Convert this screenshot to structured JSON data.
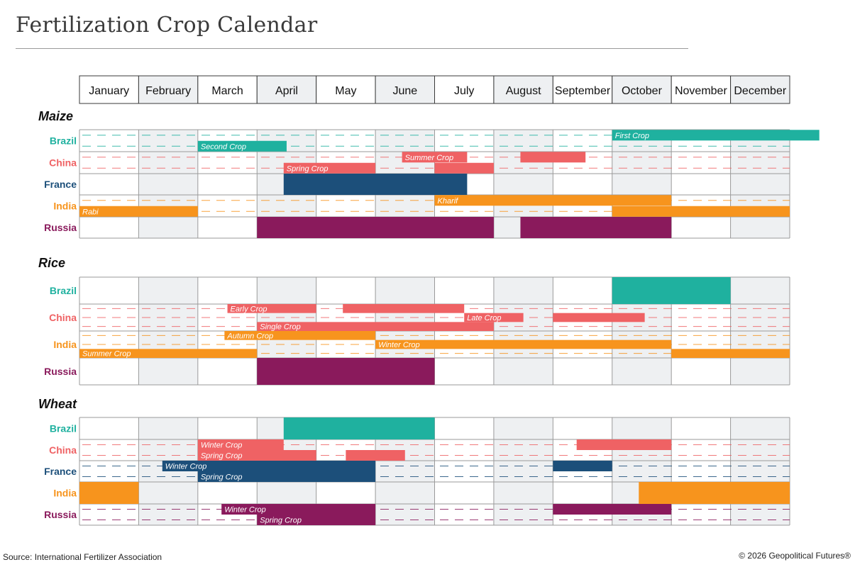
{
  "title": "Fertilization Crop Calendar",
  "source": "Source: International Fertilizer Association",
  "copyright": "© 2026 Geopolitical Futures®",
  "colors": {
    "Brazil": "#1fb19f",
    "China": "#ef6264",
    "France": "#1c4f7a",
    "India": "#f7941d",
    "Russia": "#8a1a5c",
    "shade": "#eef0f2",
    "grid": "#9a9a9a"
  },
  "chart_data": {
    "type": "gantt",
    "months": [
      "January",
      "February",
      "March",
      "April",
      "May",
      "June",
      "July",
      "August",
      "September",
      "October",
      "November",
      "December"
    ],
    "crops": [
      {
        "name": "Maize",
        "rows": [
          {
            "country": "Brazil",
            "lanes": 2,
            "bars": [
              {
                "lane": 1,
                "start": 2.0,
                "end": 3.5,
                "label": "Second Crop"
              },
              {
                "lane": 0,
                "start": 9.0,
                "end": 12.5,
                "label": "First Crop"
              }
            ]
          },
          {
            "country": "China",
            "lanes": 2,
            "bars": [
              {
                "lane": 0,
                "start": 5.45,
                "end": 6.55,
                "label": "Summer Crop"
              },
              {
                "lane": 0,
                "start": 7.45,
                "end": 8.55,
                "label": ""
              },
              {
                "lane": 1,
                "start": 3.45,
                "end": 5.0,
                "label": "Spring Crop"
              },
              {
                "lane": 1,
                "start": 6.0,
                "end": 7.0,
                "label": ""
              }
            ]
          },
          {
            "country": "France",
            "lanes": 1,
            "bars": [
              {
                "lane": 0,
                "start": 3.45,
                "end": 6.55,
                "label": ""
              }
            ]
          },
          {
            "country": "India",
            "lanes": 2,
            "bars": [
              {
                "lane": 0,
                "start": 6.0,
                "end": 10.0,
                "label": "Kharif"
              },
              {
                "lane": 1,
                "start": 0.0,
                "end": 2.0,
                "label": "Rabi"
              },
              {
                "lane": 1,
                "start": 9.0,
                "end": 12.0,
                "label": ""
              }
            ]
          },
          {
            "country": "Russia",
            "lanes": 1,
            "bars": [
              {
                "lane": 0,
                "start": 3.0,
                "end": 7.0,
                "label": ""
              },
              {
                "lane": 0,
                "start": 7.45,
                "end": 10.0,
                "label": ""
              }
            ]
          }
        ]
      },
      {
        "name": "Rice",
        "rows": [
          {
            "country": "Brazil",
            "lanes": 1,
            "bars": [
              {
                "lane": 0,
                "start": 9.0,
                "end": 11.0,
                "label": ""
              }
            ]
          },
          {
            "country": "China",
            "lanes": 3,
            "bars": [
              {
                "lane": 0,
                "start": 2.5,
                "end": 4.0,
                "label": "Early Crop"
              },
              {
                "lane": 0,
                "start": 4.45,
                "end": 6.5,
                "label": ""
              },
              {
                "lane": 1,
                "start": 6.5,
                "end": 7.5,
                "label": "Late Crop"
              },
              {
                "lane": 1,
                "start": 8.0,
                "end": 9.55,
                "label": ""
              },
              {
                "lane": 2,
                "start": 3.0,
                "end": 7.0,
                "label": "Single Crop"
              }
            ]
          },
          {
            "country": "India",
            "lanes": 3,
            "bars": [
              {
                "lane": 0,
                "start": 2.45,
                "end": 5.0,
                "label": "Autumn Crop"
              },
              {
                "lane": 1,
                "start": 5.0,
                "end": 10.0,
                "label": "Winter Crop"
              },
              {
                "lane": 2,
                "start": 0.0,
                "end": 3.0,
                "label": "Summer Crop"
              },
              {
                "lane": 2,
                "start": 10.0,
                "end": 12.0,
                "label": ""
              }
            ]
          },
          {
            "country": "Russia",
            "lanes": 1,
            "bars": [
              {
                "lane": 0,
                "start": 3.0,
                "end": 6.0,
                "label": ""
              }
            ]
          }
        ]
      },
      {
        "name": "Wheat",
        "rows": [
          {
            "country": "Brazil",
            "lanes": 1,
            "bars": [
              {
                "lane": 0,
                "start": 3.45,
                "end": 6.0,
                "label": ""
              }
            ]
          },
          {
            "country": "China",
            "lanes": 2,
            "bars": [
              {
                "lane": 0,
                "start": 2.0,
                "end": 3.45,
                "label": "Winter Crop"
              },
              {
                "lane": 0,
                "start": 8.4,
                "end": 10.0,
                "label": ""
              },
              {
                "lane": 1,
                "start": 2.0,
                "end": 4.0,
                "label": "Spring Crop"
              },
              {
                "lane": 1,
                "start": 4.5,
                "end": 5.5,
                "label": ""
              }
            ]
          },
          {
            "country": "France",
            "lanes": 2,
            "bars": [
              {
                "lane": 0,
                "start": 1.4,
                "end": 5.0,
                "label": "Winter Crop"
              },
              {
                "lane": 0,
                "start": 8.0,
                "end": 9.0,
                "label": ""
              },
              {
                "lane": 1,
                "start": 2.0,
                "end": 5.0,
                "label": "Spring Crop"
              }
            ]
          },
          {
            "country": "India",
            "lanes": 1,
            "bars": [
              {
                "lane": 0,
                "start": 0.0,
                "end": 1.0,
                "label": ""
              },
              {
                "lane": 0,
                "start": 9.45,
                "end": 12.0,
                "label": ""
              }
            ]
          },
          {
            "country": "Russia",
            "lanes": 2,
            "bars": [
              {
                "lane": 0,
                "start": 2.4,
                "end": 5.0,
                "label": "Winter Crop"
              },
              {
                "lane": 0,
                "start": 8.0,
                "end": 10.0,
                "label": ""
              },
              {
                "lane": 1,
                "start": 3.0,
                "end": 5.0,
                "label": "Spring Crop"
              }
            ]
          }
        ]
      }
    ]
  }
}
